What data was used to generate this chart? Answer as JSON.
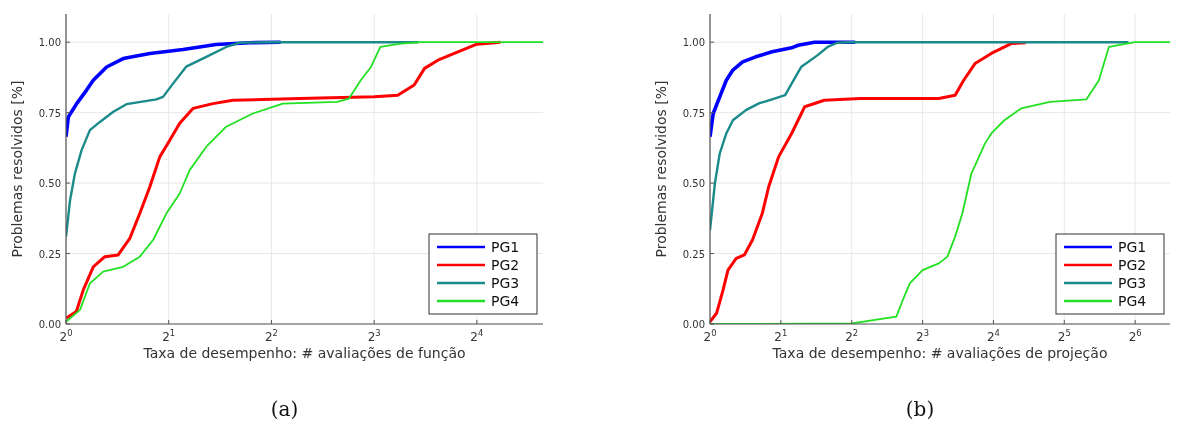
{
  "chart_data": [
    {
      "type": "line",
      "xlabel": "Taxa de desempenho: # avaliações de função",
      "ylabel": "Problemas resolvidos [%]",
      "annotations": [
        "(a)"
      ],
      "log": "x",
      "grid": true,
      "legend": "bottom right",
      "xlim": [
        1,
        25
      ],
      "ylim": [
        0,
        1.1
      ],
      "xticks": [
        {
          "value": 1,
          "label": "2$^{0}$"
        },
        {
          "value": 2,
          "label": "2$^{1}$"
        },
        {
          "value": 4,
          "label": "2$^{2}$"
        },
        {
          "value": 8,
          "label": "2$^{3}$"
        },
        {
          "value": 16,
          "label": "2$^{4}$"
        }
      ],
      "yticks": [
        {
          "value": 0,
          "label": "0.00"
        },
        {
          "value": 0.25,
          "label": "0.25"
        },
        {
          "value": 0.5,
          "label": "0.50"
        },
        {
          "value": 0.75,
          "label": "0.75"
        },
        {
          "value": 1,
          "label": "1.00"
        }
      ],
      "series": [
        {
          "name": "PG1",
          "color": "#0000ff",
          "x": [
            1,
            1.016,
            1.072,
            1.149,
            1.202,
            1.315,
            1.471,
            1.761,
            2.204,
            2.462,
            2.751,
            3.458,
            4.257
          ],
          "values": [
            0.664,
            0.735,
            0.78,
            0.83,
            0.865,
            0.912,
            0.942,
            0.96,
            0.974,
            0.983,
            0.992,
            0.998,
            1.0
          ]
        },
        {
          "name": "PG2",
          "color": "#ff0000",
          "x": [
            1,
            1.072,
            1.123,
            1.202,
            1.3,
            1.422,
            1.538,
            1.645,
            1.761,
            1.883,
            2.014,
            2.154,
            2.356,
            2.695,
            3.084,
            4.823,
            8,
            9.38,
            10.48,
            11.24,
            12.3,
            13.74,
            16,
            18.77
          ],
          "values": [
            0.02,
            0.044,
            0.12,
            0.203,
            0.239,
            0.245,
            0.304,
            0.392,
            0.487,
            0.593,
            0.652,
            0.712,
            0.765,
            0.782,
            0.794,
            0.8,
            0.806,
            0.812,
            0.848,
            0.907,
            0.936,
            0.96,
            0.993,
            1.0
          ]
        },
        {
          "name": "PG3",
          "color": "#1a8a8a",
          "x": [
            1,
            1.028,
            1.062,
            1.111,
            1.175,
            1.257,
            1.376,
            1.504,
            1.84,
            1.925,
            2.059,
            2.25,
            2.578,
            2.948,
            3.227,
            3.864,
            10.78
          ],
          "values": [
            0.31,
            0.44,
            0.534,
            0.617,
            0.688,
            0.717,
            0.753,
            0.78,
            0.797,
            0.806,
            0.853,
            0.913,
            0.948,
            0.983,
            0.998,
            1.0,
            1.0
          ]
        },
        {
          "name": "PG4",
          "color": "#22e022",
          "x": [
            1,
            1.099,
            1.175,
            1.285,
            1.471,
            1.645,
            1.8,
            1.968,
            2.154,
            2.304,
            2.578,
            2.948,
            3.528,
            4.317,
            6.23,
            6.75,
            7.31,
            7.84,
            8.34,
            9.58,
            10.93,
            25
          ],
          "values": [
            0.008,
            0.05,
            0.144,
            0.186,
            0.203,
            0.239,
            0.298,
            0.392,
            0.463,
            0.546,
            0.629,
            0.7,
            0.747,
            0.782,
            0.788,
            0.8,
            0.865,
            0.913,
            0.983,
            0.995,
            1.0,
            1.0
          ]
        }
      ]
    },
    {
      "type": "line",
      "xlabel": "Taxa de desempenho: # avaliações de projeção",
      "ylabel": "Problemas resolvidos [%]",
      "annotations": [
        "(b)"
      ],
      "log": "x",
      "grid": true,
      "legend": "bottom right",
      "xlim": [
        1,
        90
      ],
      "ylim": [
        0,
        1.1
      ],
      "xticks": [
        {
          "value": 1,
          "label": "2$^{0}$"
        },
        {
          "value": 2,
          "label": "2$^{1}$"
        },
        {
          "value": 4,
          "label": "2$^{2}$"
        },
        {
          "value": 8,
          "label": "2$^{3}$"
        },
        {
          "value": 16,
          "label": "2$^{4}$"
        },
        {
          "value": 32,
          "label": "2$^{5}$"
        },
        {
          "value": 64,
          "label": "2$^{6}$"
        }
      ],
      "yticks": [
        {
          "value": 0,
          "label": "0.00"
        },
        {
          "value": 0.25,
          "label": "0.25"
        },
        {
          "value": 0.5,
          "label": "0.50"
        },
        {
          "value": 0.75,
          "label": "0.75"
        },
        {
          "value": 1,
          "label": "1.00"
        }
      ],
      "series": [
        {
          "name": "PG1",
          "color": "#0000ff",
          "x": [
            1,
            1.032,
            1.1,
            1.173,
            1.251,
            1.376,
            1.564,
            1.835,
            2.222,
            2.369,
            2.78,
            4.14
          ],
          "values": [
            0.664,
            0.747,
            0.806,
            0.865,
            0.901,
            0.93,
            0.948,
            0.966,
            0.98,
            0.989,
            1.0,
            1.0
          ]
        },
        {
          "name": "PG2",
          "color": "#ff0000",
          "x": [
            1,
            1.066,
            1.136,
            1.192,
            1.292,
            1.399,
            1.515,
            1.667,
            1.776,
            1.956,
            2.222,
            2.525,
            3.059,
            4.347,
            9.38,
            11.0,
            11.96,
            13.36,
            15.67,
            19.03,
            21.93
          ],
          "values": [
            0.008,
            0.038,
            0.12,
            0.191,
            0.233,
            0.245,
            0.298,
            0.392,
            0.487,
            0.593,
            0.676,
            0.771,
            0.794,
            0.8,
            0.8,
            0.812,
            0.865,
            0.924,
            0.96,
            0.995,
            0.998
          ]
        },
        {
          "name": "PG3",
          "color": "#1a8a8a",
          "x": [
            1,
            1.049,
            1.1,
            1.173,
            1.251,
            1.421,
            1.614,
            1.835,
            2.085,
            2.222,
            2.445,
            2.868,
            3.16,
            3.475,
            3.945,
            60
          ],
          "values": [
            0.333,
            0.499,
            0.605,
            0.676,
            0.723,
            0.759,
            0.783,
            0.797,
            0.812,
            0.853,
            0.913,
            0.954,
            0.983,
            0.998,
            1.0,
            1.0
          ]
        },
        {
          "name": "PG4",
          "color": "#22e022",
          "x": [
            1,
            4,
            6.19,
            6.59,
            7.06,
            8,
            9.38,
            10.2,
            11.0,
            11.8,
            12.9,
            14.72,
            15.67,
            17.8,
            20.97,
            27.86,
            39.7,
            44.9,
            49.5,
            64,
            90
          ],
          "values": [
            0,
            0.002,
            0.026,
            0.085,
            0.144,
            0.191,
            0.215,
            0.239,
            0.31,
            0.392,
            0.534,
            0.64,
            0.676,
            0.723,
            0.765,
            0.788,
            0.797,
            0.865,
            0.983,
            1.0,
            1.0
          ]
        }
      ]
    }
  ]
}
